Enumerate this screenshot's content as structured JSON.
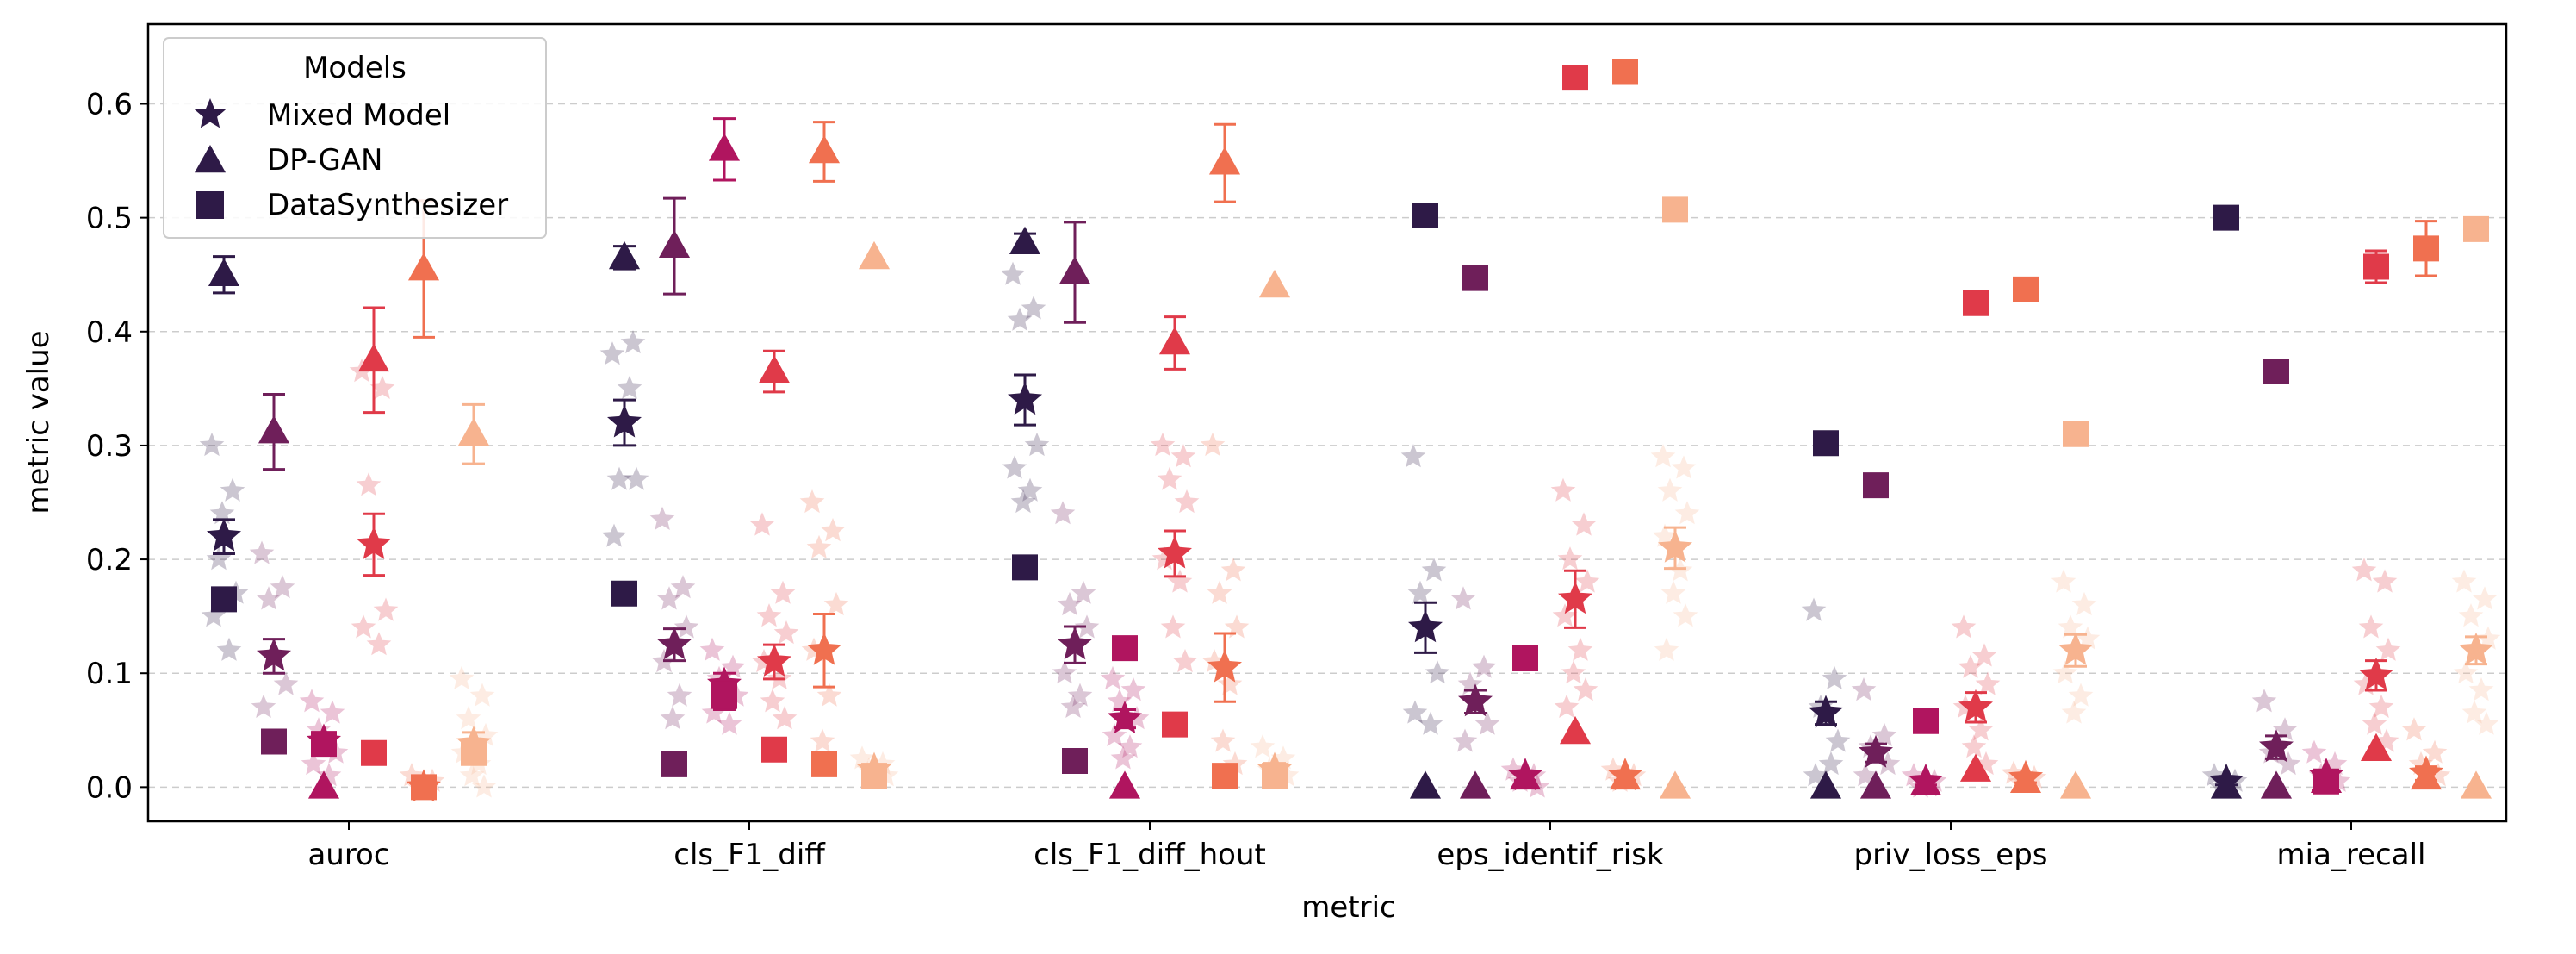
{
  "chart_data": {
    "type": "scatter",
    "title": "",
    "xlabel": "metric",
    "ylabel": "metric value",
    "categories": [
      "auroc",
      "cls_F1_diff",
      "cls_F1_diff_hout",
      "eps_identif_risk",
      "priv_loss_eps",
      "mia_recall"
    ],
    "ylim": [
      -0.03,
      0.67
    ],
    "yticks": [
      "0.0",
      "0.1",
      "0.2",
      "0.3",
      "0.4",
      "0.5",
      "0.6"
    ],
    "ytick_values": [
      0.0,
      0.1,
      0.2,
      0.3,
      0.4,
      0.5,
      0.6
    ],
    "grid": "horizontal dashed",
    "legend": {
      "title": "Models",
      "placement": "top-left",
      "entries": [
        {
          "label": "Mixed Model",
          "marker": "star"
        },
        {
          "label": "DP-GAN",
          "marker": "triangle"
        },
        {
          "label": "DataSynthesizer",
          "marker": "square"
        }
      ]
    },
    "palette": [
      "#2e1a47",
      "#6f1f5a",
      "#b0155f",
      "#e03a49",
      "#f07050",
      "#f7b38f"
    ],
    "series": [
      {
        "model": "Mixed Model",
        "marker": "star",
        "group": 1,
        "values": [
          0.22,
          0.32,
          0.34,
          0.14,
          0.065,
          0.005
        ],
        "err": [
          0.015,
          0.02,
          0.022,
          0.022,
          0.01,
          0.003
        ],
        "scatter": [
          [
            0.3,
            0.26,
            0.2,
            0.17,
            0.15,
            0.12,
            0.24
          ],
          [
            0.38,
            0.39,
            0.27,
            0.27,
            0.22,
            0.35
          ],
          [
            0.45,
            0.42,
            0.41,
            0.3,
            0.28,
            0.26,
            0.25
          ],
          [
            0.29,
            0.19,
            0.17,
            0.1,
            0.065,
            0.055
          ],
          [
            0.155,
            0.095,
            0.07,
            0.04,
            0.01,
            0.02
          ],
          [
            0.01,
            0.005,
            0.0
          ]
        ]
      },
      {
        "model": "Mixed Model",
        "marker": "star",
        "group": 2,
        "values": [
          0.115,
          0.125,
          0.125,
          0.075,
          0.03,
          0.035
        ],
        "err": [
          0.015,
          0.014,
          0.016,
          0.01,
          0.008,
          0.01
        ],
        "scatter": [
          [
            0.205,
            0.175,
            0.165,
            0.09,
            0.07
          ],
          [
            0.235,
            0.175,
            0.165,
            0.14,
            0.11,
            0.08,
            0.06
          ],
          [
            0.24,
            0.17,
            0.16,
            0.14,
            0.1,
            0.08,
            0.07
          ],
          [
            0.165,
            0.105,
            0.09,
            0.055,
            0.04
          ],
          [
            0.085,
            0.045,
            0.035,
            0.02,
            0.01
          ],
          [
            0.075,
            0.05,
            0.03,
            0.02
          ]
        ]
      },
      {
        "model": "Mixed Model",
        "marker": "star",
        "group": 3,
        "values": [
          0.04,
          0.09,
          0.06,
          0.01,
          0.005,
          0.01
        ],
        "err": [
          0.006,
          0.01,
          0.008,
          0.004,
          0.003,
          0.004
        ],
        "scatter": [
          [
            0.075,
            0.065,
            0.05,
            0.03,
            0.02,
            0.01
          ],
          [
            0.12,
            0.105,
            0.095,
            0.08,
            0.065,
            0.055
          ],
          [
            0.095,
            0.085,
            0.075,
            0.06,
            0.045,
            0.035,
            0.025
          ],
          [
            0.015,
            0.01,
            0.005,
            0.0
          ],
          [
            0.01,
            0.005,
            0.0
          ],
          [
            0.03,
            0.02,
            0.01,
            0.005
          ]
        ]
      },
      {
        "model": "Mixed Model",
        "marker": "star",
        "group": 4,
        "values": [
          0.213,
          0.11,
          0.205,
          0.165,
          0.07,
          0.098
        ],
        "err": [
          0.027,
          0.015,
          0.02,
          0.025,
          0.013,
          0.013
        ],
        "scatter": [
          [
            0.365,
            0.35,
            0.265,
            0.155,
            0.14,
            0.125
          ],
          [
            0.23,
            0.17,
            0.15,
            0.135,
            0.11,
            0.095,
            0.075,
            0.06
          ],
          [
            0.3,
            0.29,
            0.27,
            0.25,
            0.2,
            0.18,
            0.14,
            0.11
          ],
          [
            0.26,
            0.23,
            0.2,
            0.18,
            0.15,
            0.12,
            0.1,
            0.085,
            0.07
          ],
          [
            0.14,
            0.115,
            0.105,
            0.09,
            0.07,
            0.05,
            0.035,
            0.02
          ],
          [
            0.19,
            0.18,
            0.14,
            0.12,
            0.09,
            0.07,
            0.055,
            0.04
          ]
        ]
      },
      {
        "model": "Mixed Model",
        "marker": "star",
        "group": 5,
        "values": [
          0.0,
          0.12,
          0.105,
          0.01,
          0.008,
          0.012
        ],
        "err": [
          0.0,
          0.032,
          0.03,
          0.004,
          0.004,
          0.006
        ],
        "scatter": [
          [
            0.01,
            0.005,
            0.0
          ],
          [
            0.25,
            0.225,
            0.21,
            0.16,
            0.12,
            0.08,
            0.04
          ],
          [
            0.3,
            0.19,
            0.17,
            0.14,
            0.11,
            0.09,
            0.04,
            0.02
          ],
          [
            0.015,
            0.01,
            0.005
          ],
          [
            0.012,
            0.008,
            0.004
          ],
          [
            0.05,
            0.03,
            0.02,
            0.01
          ]
        ]
      },
      {
        "model": "Mixed Model",
        "marker": "star",
        "group": 6,
        "values": [
          0.038,
          0.015,
          0.015,
          0.21,
          0.12,
          0.12
        ],
        "err": [
          0.01,
          0.005,
          0.006,
          0.018,
          0.014,
          0.012
        ],
        "scatter": [
          [
            0.095,
            0.08,
            0.06,
            0.045,
            0.03,
            0.02,
            0.01,
            0.0
          ],
          [
            0.025,
            0.02,
            0.015,
            0.01
          ],
          [
            0.035,
            0.025,
            0.015,
            0.01
          ],
          [
            0.29,
            0.28,
            0.26,
            0.24,
            0.22,
            0.19,
            0.17,
            0.15,
            0.12
          ],
          [
            0.18,
            0.16,
            0.14,
            0.13,
            0.1,
            0.08,
            0.065
          ],
          [
            0.18,
            0.165,
            0.15,
            0.13,
            0.1,
            0.085,
            0.065,
            0.055
          ]
        ]
      },
      {
        "model": "DP-GAN",
        "marker": "triangle",
        "group": 1,
        "values": [
          0.45,
          0.465,
          0.478,
          0.0,
          0.0,
          0.0
        ],
        "err": [
          0.016,
          0.01,
          0.008,
          0.0,
          0.0,
          0.0
        ]
      },
      {
        "model": "DP-GAN",
        "marker": "triangle",
        "group": 2,
        "values": [
          0.312,
          0.475,
          0.452,
          0.0,
          0.0,
          0.0
        ],
        "err": [
          0.033,
          0.042,
          0.044,
          0.0,
          0.0,
          0.0
        ]
      },
      {
        "model": "DP-GAN",
        "marker": "triangle",
        "group": 3,
        "values": [
          0.0,
          0.56,
          0.0,
          0.008,
          0.003,
          0.005
        ],
        "err": [
          0.0,
          0.027,
          0.0,
          0.0,
          0.0,
          0.0
        ]
      },
      {
        "model": "DP-GAN",
        "marker": "triangle",
        "group": 4,
        "values": [
          0.375,
          0.365,
          0.39,
          0.048,
          0.015,
          0.033
        ],
        "err": [
          0.046,
          0.018,
          0.023,
          0.0,
          0.0,
          0.0
        ]
      },
      {
        "model": "DP-GAN",
        "marker": "triangle",
        "group": 5,
        "values": [
          0.455,
          0.558,
          0.548,
          0.008,
          0.005,
          0.008
        ],
        "err": [
          0.06,
          0.026,
          0.034,
          0.0,
          0.0,
          0.0
        ]
      },
      {
        "model": "DP-GAN",
        "marker": "triangle",
        "group": 6,
        "values": [
          0.31,
          0.465,
          0.44,
          0.0,
          0.0,
          0.0
        ],
        "err": [
          0.026,
          0.0,
          0.0,
          0.0,
          0.0,
          0.0
        ]
      },
      {
        "model": "DataSynthesizer",
        "marker": "square",
        "group": 1,
        "values": [
          0.165,
          0.17,
          0.193,
          0.502,
          0.302,
          0.5
        ],
        "err": [
          0.0,
          0.0,
          0.0,
          0.0,
          0.0,
          0.0
        ]
      },
      {
        "model": "DataSynthesizer",
        "marker": "square",
        "group": 2,
        "values": [
          0.04,
          0.02,
          0.023,
          0.447,
          0.265,
          0.365
        ],
        "err": [
          0.0,
          0.0,
          0.0,
          0.0,
          0.0,
          0.0
        ]
      },
      {
        "model": "DataSynthesizer",
        "marker": "square",
        "group": 3,
        "values": [
          0.038,
          0.08,
          0.122,
          0.113,
          0.058,
          0.005
        ],
        "err": [
          0.0,
          0.012,
          0.0,
          0.0,
          0.0,
          0.0
        ]
      },
      {
        "model": "DataSynthesizer",
        "marker": "square",
        "group": 4,
        "values": [
          0.03,
          0.033,
          0.055,
          0.623,
          0.425,
          0.457
        ],
        "err": [
          0.0,
          0.0,
          0.0,
          0.0,
          0.0,
          0.014
        ]
      },
      {
        "model": "DataSynthesizer",
        "marker": "square",
        "group": 5,
        "values": [
          0.0,
          0.02,
          0.01,
          0.628,
          0.437,
          0.473
        ],
        "err": [
          0.0,
          0.0,
          0.0,
          0.0,
          0.0,
          0.024
        ]
      },
      {
        "model": "DataSynthesizer",
        "marker": "square",
        "group": 6,
        "values": [
          0.03,
          0.01,
          0.01,
          0.507,
          0.31,
          0.49
        ],
        "err": [
          0.0,
          0.0,
          0.0,
          0.0,
          0.0,
          0.0
        ]
      }
    ]
  }
}
